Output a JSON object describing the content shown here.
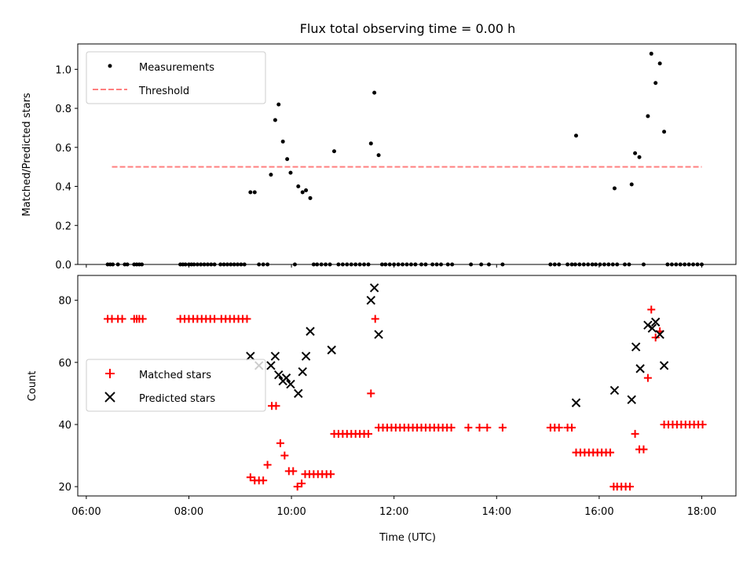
{
  "figure": {
    "title": "Flux total observing time = 0.00 h"
  },
  "chart_data": [
    {
      "type": "scatter",
      "title": "Flux total observing time = 0.00 h",
      "xlabel": "",
      "ylabel": "Matched/Predicted stars",
      "xlim": [
        "05:50",
        "18:40"
      ],
      "ylim": [
        0,
        1.13
      ],
      "yticks": [
        0.0,
        0.2,
        0.4,
        0.6,
        0.8,
        1.0
      ],
      "ytick_labels": [
        "0.0",
        "0.2",
        "0.4",
        "0.6",
        "0.8",
        "1.0"
      ],
      "grid": false,
      "legend_position": "top-left",
      "threshold": {
        "name": "Threshold",
        "value": 0.5,
        "x_range": [
          "06:30",
          "18:00"
        ],
        "color": "#ff7f7f"
      },
      "series": [
        {
          "name": "Measurements",
          "color": "#000000",
          "points": [
            [
              "06:25",
              0
            ],
            [
              "06:28",
              0
            ],
            [
              "06:31",
              0
            ],
            [
              "06:37",
              0
            ],
            [
              "06:45",
              0
            ],
            [
              "06:48",
              0
            ],
            [
              "06:56",
              0
            ],
            [
              "06:59",
              0
            ],
            [
              "07:02",
              0
            ],
            [
              "07:05",
              0
            ],
            [
              "07:50",
              0
            ],
            [
              "07:53",
              0
            ],
            [
              "07:56",
              0
            ],
            [
              "08:00",
              0
            ],
            [
              "08:03",
              0
            ],
            [
              "08:06",
              0
            ],
            [
              "08:10",
              0
            ],
            [
              "08:14",
              0
            ],
            [
              "08:18",
              0
            ],
            [
              "08:22",
              0
            ],
            [
              "08:26",
              0
            ],
            [
              "08:30",
              0
            ],
            [
              "08:37",
              0
            ],
            [
              "08:41",
              0
            ],
            [
              "08:45",
              0
            ],
            [
              "08:49",
              0
            ],
            [
              "08:53",
              0
            ],
            [
              "08:57",
              0
            ],
            [
              "09:01",
              0
            ],
            [
              "09:05",
              0
            ],
            [
              "09:12",
              0.37
            ],
            [
              "09:17",
              0.37
            ],
            [
              "09:22",
              0
            ],
            [
              "09:27",
              0
            ],
            [
              "09:32",
              0
            ],
            [
              "09:36",
              0.46
            ],
            [
              "09:41",
              0.74
            ],
            [
              "09:45",
              0.82
            ],
            [
              "09:50",
              0.63
            ],
            [
              "09:55",
              0.54
            ],
            [
              "09:59",
              0.47
            ],
            [
              "10:04",
              0
            ],
            [
              "10:08",
              0.4
            ],
            [
              "10:13",
              0.37
            ],
            [
              "10:17",
              0.38
            ],
            [
              "10:22",
              0.34
            ],
            [
              "10:26",
              0
            ],
            [
              "10:30",
              0
            ],
            [
              "10:35",
              0
            ],
            [
              "10:40",
              0
            ],
            [
              "10:45",
              0
            ],
            [
              "10:50",
              0.58
            ],
            [
              "10:55",
              0
            ],
            [
              "11:00",
              0
            ],
            [
              "11:05",
              0
            ],
            [
              "11:10",
              0
            ],
            [
              "11:15",
              0
            ],
            [
              "11:20",
              0
            ],
            [
              "11:25",
              0
            ],
            [
              "11:30",
              0
            ],
            [
              "11:33",
              0.62
            ],
            [
              "11:37",
              0.88
            ],
            [
              "11:42",
              0.56
            ],
            [
              "11:46",
              0
            ],
            [
              "11:50",
              0
            ],
            [
              "11:55",
              0
            ],
            [
              "12:00",
              0
            ],
            [
              "12:05",
              0
            ],
            [
              "12:10",
              0
            ],
            [
              "12:15",
              0
            ],
            [
              "12:20",
              0
            ],
            [
              "12:25",
              0
            ],
            [
              "12:32",
              0
            ],
            [
              "12:37",
              0
            ],
            [
              "12:45",
              0
            ],
            [
              "12:50",
              0
            ],
            [
              "12:55",
              0
            ],
            [
              "13:03",
              0
            ],
            [
              "13:08",
              0
            ],
            [
              "13:30",
              0
            ],
            [
              "13:42",
              0
            ],
            [
              "13:51",
              0
            ],
            [
              "14:07",
              0
            ],
            [
              "15:03",
              0
            ],
            [
              "15:08",
              0
            ],
            [
              "15:13",
              0
            ],
            [
              "15:23",
              0
            ],
            [
              "15:28",
              0
            ],
            [
              "15:32",
              0
            ],
            [
              "15:33",
              0.66
            ],
            [
              "15:37",
              0
            ],
            [
              "15:42",
              0
            ],
            [
              "15:47",
              0
            ],
            [
              "15:52",
              0
            ],
            [
              "15:56",
              0
            ],
            [
              "16:01",
              0
            ],
            [
              "16:06",
              0
            ],
            [
              "16:11",
              0
            ],
            [
              "16:16",
              0
            ],
            [
              "16:18",
              0.39
            ],
            [
              "16:21",
              0
            ],
            [
              "16:30",
              0
            ],
            [
              "16:35",
              0
            ],
            [
              "16:38",
              0.41
            ],
            [
              "16:42",
              0.57
            ],
            [
              "16:47",
              0.55
            ],
            [
              "16:52",
              0
            ],
            [
              "16:57",
              0.76
            ],
            [
              "17:01",
              1.08
            ],
            [
              "17:06",
              0.93
            ],
            [
              "17:11",
              1.03
            ],
            [
              "17:16",
              0.68
            ],
            [
              "17:20",
              0
            ],
            [
              "17:25",
              0
            ],
            [
              "17:30",
              0
            ],
            [
              "17:35",
              0
            ],
            [
              "17:40",
              0
            ],
            [
              "17:45",
              0
            ],
            [
              "17:50",
              0
            ],
            [
              "17:55",
              0
            ],
            [
              "18:00",
              0
            ]
          ]
        }
      ]
    },
    {
      "type": "scatter",
      "title": "",
      "xlabel": "Time (UTC)",
      "ylabel": "Count",
      "xlim": [
        "05:50",
        "18:40"
      ],
      "ylim": [
        17,
        88
      ],
      "xticks": [
        "06:00",
        "08:00",
        "10:00",
        "12:00",
        "14:00",
        "16:00",
        "18:00"
      ],
      "yticks": [
        20,
        40,
        60,
        80
      ],
      "ytick_labels": [
        "20",
        "40",
        "60",
        "80"
      ],
      "grid": false,
      "legend_position": "center-left",
      "series": [
        {
          "name": "Matched stars",
          "marker": "+",
          "color": "#ff0000",
          "points": [
            [
              "06:25",
              74
            ],
            [
              "06:30",
              74
            ],
            [
              "06:37",
              74
            ],
            [
              "06:42",
              74
            ],
            [
              "06:56",
              74
            ],
            [
              "06:59",
              74
            ],
            [
              "07:02",
              74
            ],
            [
              "07:06",
              74
            ],
            [
              "07:50",
              74
            ],
            [
              "07:55",
              74
            ],
            [
              "08:00",
              74
            ],
            [
              "08:05",
              74
            ],
            [
              "08:10",
              74
            ],
            [
              "08:15",
              74
            ],
            [
              "08:20",
              74
            ],
            [
              "08:25",
              74
            ],
            [
              "08:30",
              74
            ],
            [
              "08:38",
              74
            ],
            [
              "08:43",
              74
            ],
            [
              "08:48",
              74
            ],
            [
              "08:53",
              74
            ],
            [
              "08:58",
              74
            ],
            [
              "09:03",
              74
            ],
            [
              "09:08",
              74
            ],
            [
              "09:12",
              23
            ],
            [
              "09:17",
              22
            ],
            [
              "09:22",
              22
            ],
            [
              "09:27",
              22
            ],
            [
              "09:32",
              27
            ],
            [
              "09:37",
              46
            ],
            [
              "09:42",
              46
            ],
            [
              "09:47",
              34
            ],
            [
              "09:52",
              30
            ],
            [
              "09:57",
              25
            ],
            [
              "10:02",
              25
            ],
            [
              "10:07",
              20
            ],
            [
              "10:12",
              21
            ],
            [
              "10:16",
              24
            ],
            [
              "10:21",
              24
            ],
            [
              "10:26",
              24
            ],
            [
              "10:31",
              24
            ],
            [
              "10:36",
              24
            ],
            [
              "10:41",
              24
            ],
            [
              "10:46",
              24
            ],
            [
              "10:50",
              37
            ],
            [
              "10:55",
              37
            ],
            [
              "11:00",
              37
            ],
            [
              "11:05",
              37
            ],
            [
              "11:10",
              37
            ],
            [
              "11:15",
              37
            ],
            [
              "11:20",
              37
            ],
            [
              "11:25",
              37
            ],
            [
              "11:30",
              37
            ],
            [
              "11:33",
              50
            ],
            [
              "11:38",
              74
            ],
            [
              "11:42",
              39
            ],
            [
              "11:47",
              39
            ],
            [
              "11:52",
              39
            ],
            [
              "11:57",
              39
            ],
            [
              "12:02",
              39
            ],
            [
              "12:07",
              39
            ],
            [
              "12:12",
              39
            ],
            [
              "12:17",
              39
            ],
            [
              "12:22",
              39
            ],
            [
              "12:27",
              39
            ],
            [
              "12:32",
              39
            ],
            [
              "12:37",
              39
            ],
            [
              "12:42",
              39
            ],
            [
              "12:47",
              39
            ],
            [
              "12:52",
              39
            ],
            [
              "12:57",
              39
            ],
            [
              "13:02",
              39
            ],
            [
              "13:07",
              39
            ],
            [
              "13:27",
              39
            ],
            [
              "13:40",
              39
            ],
            [
              "13:49",
              39
            ],
            [
              "14:07",
              39
            ],
            [
              "15:03",
              39
            ],
            [
              "15:08",
              39
            ],
            [
              "15:13",
              39
            ],
            [
              "15:23",
              39
            ],
            [
              "15:28",
              39
            ],
            [
              "15:33",
              31
            ],
            [
              "15:38",
              31
            ],
            [
              "15:43",
              31
            ],
            [
              "15:48",
              31
            ],
            [
              "15:53",
              31
            ],
            [
              "15:58",
              31
            ],
            [
              "16:03",
              31
            ],
            [
              "16:08",
              31
            ],
            [
              "16:13",
              31
            ],
            [
              "16:17",
              20
            ],
            [
              "16:21",
              20
            ],
            [
              "16:26",
              20
            ],
            [
              "16:31",
              20
            ],
            [
              "16:36",
              20
            ],
            [
              "16:42",
              37
            ],
            [
              "16:47",
              32
            ],
            [
              "16:52",
              32
            ],
            [
              "16:57",
              55
            ],
            [
              "17:01",
              77
            ],
            [
              "17:06",
              68
            ],
            [
              "17:11",
              70
            ],
            [
              "17:16",
              40
            ],
            [
              "17:21",
              40
            ],
            [
              "17:26",
              40
            ],
            [
              "17:31",
              40
            ],
            [
              "17:36",
              40
            ],
            [
              "17:41",
              40
            ],
            [
              "17:46",
              40
            ],
            [
              "17:51",
              40
            ],
            [
              "17:56",
              40
            ],
            [
              "18:01",
              40
            ]
          ]
        },
        {
          "name": "Predicted stars",
          "marker": "x",
          "color": "#000000",
          "points": [
            [
              "09:12",
              62
            ],
            [
              "09:22",
              59
            ],
            [
              "09:36",
              59
            ],
            [
              "09:41",
              62
            ],
            [
              "09:45",
              56
            ],
            [
              "09:50",
              54
            ],
            [
              "09:54",
              55
            ],
            [
              "09:59",
              53
            ],
            [
              "10:08",
              50
            ],
            [
              "10:13",
              57
            ],
            [
              "10:17",
              62
            ],
            [
              "10:22",
              70
            ],
            [
              "10:47",
              64
            ],
            [
              "11:33",
              80
            ],
            [
              "11:37",
              84
            ],
            [
              "11:42",
              69
            ],
            [
              "15:33",
              47
            ],
            [
              "16:18",
              51
            ],
            [
              "16:38",
              48
            ],
            [
              "16:43",
              65
            ],
            [
              "16:48",
              58
            ],
            [
              "16:57",
              72
            ],
            [
              "17:02",
              71
            ],
            [
              "17:06",
              73
            ],
            [
              "17:11",
              69
            ],
            [
              "17:16",
              59
            ]
          ]
        }
      ]
    }
  ]
}
